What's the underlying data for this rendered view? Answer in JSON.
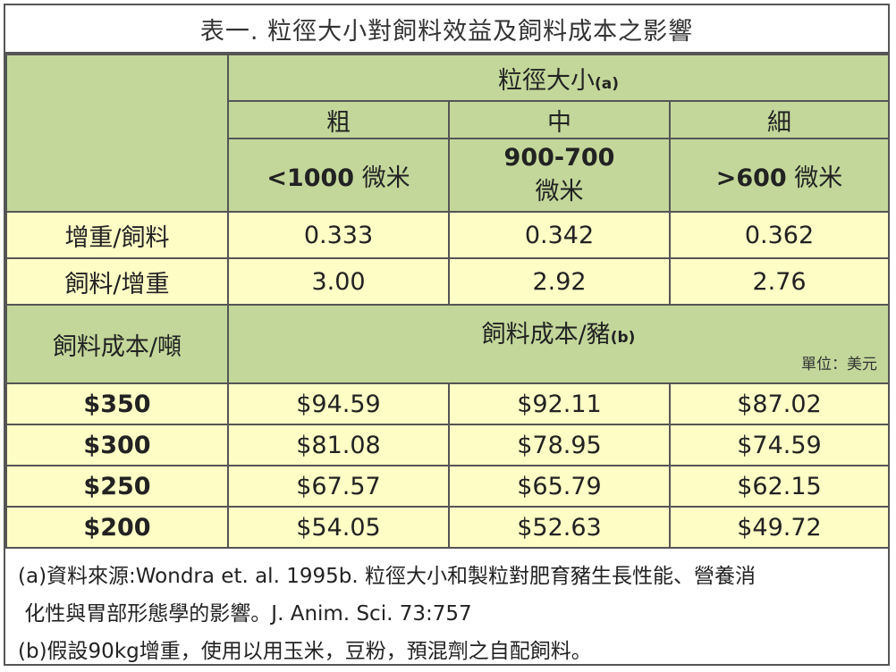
{
  "title": "表一. 粒徑大小對飼料效益及飼料成本之影響",
  "header": {
    "size_label": "粒徑大小",
    "size_note": "(a)",
    "cols": [
      "粗",
      "中",
      "細"
    ],
    "ranges": [
      {
        "value": "<1000",
        "unit": "微米"
      },
      {
        "value": "900-700",
        "unit": "微米"
      },
      {
        "value": ">600",
        "unit": "微米"
      }
    ]
  },
  "efficiency_rows": [
    {
      "label": "增重/飼料",
      "values": [
        "0.333",
        "0.342",
        "0.362"
      ]
    },
    {
      "label": "飼料/增重",
      "values": [
        "3.00",
        "2.92",
        "2.76"
      ]
    }
  ],
  "cost_header": {
    "label": "飼料成本/噸",
    "group_label": "飼料成本/豬",
    "group_note": "(b)",
    "unit": "單位：美元"
  },
  "cost_rows": [
    {
      "label": "$350",
      "values": [
        "$94.59",
        "$92.11",
        "$87.02"
      ]
    },
    {
      "label": "$300",
      "values": [
        "$81.08",
        "$78.95",
        "$74.59"
      ]
    },
    {
      "label": "$250",
      "values": [
        "$67.57",
        "$65.79",
        "$62.15"
      ]
    },
    {
      "label": "$200",
      "values": [
        "$54.05",
        "$52.63",
        "$49.72"
      ]
    }
  ],
  "footnotes": [
    "(a)資料來源:Wondra et. al. 1995b. 粒徑大小和製粒對肥育豬生長性能、營養消",
    " 化性與胃部形態學的影響。J. Anim. Sci. 73:757",
    "(b)假設90kg增重，使用以用玉米，豆粉，預混劑之自配飼料。"
  ],
  "colors": {
    "header_green": "#c4d79b",
    "cell_yellow": "#fefdc6",
    "border": "#555555"
  }
}
